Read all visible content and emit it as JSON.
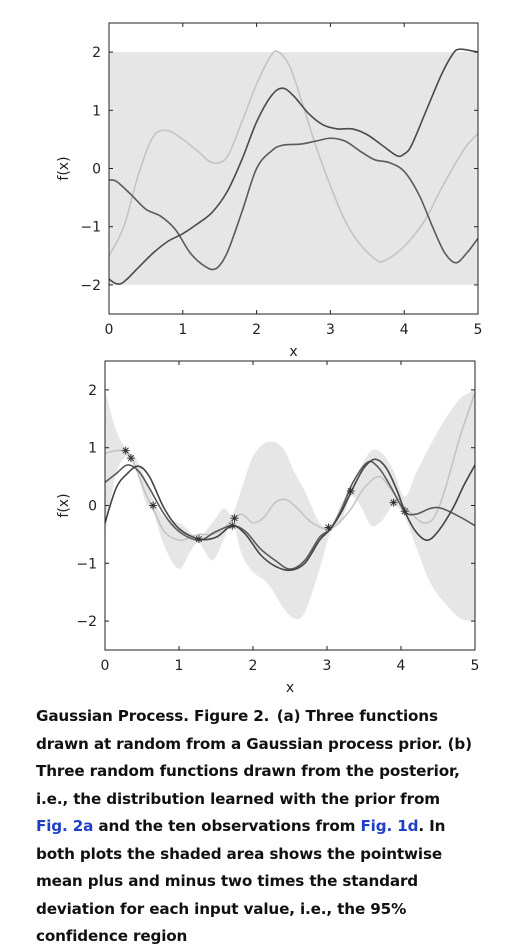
{
  "chart_data": [
    {
      "type": "line",
      "panel": "a",
      "xlabel": "x",
      "ylabel": "f(x)",
      "xlim": [
        0,
        5
      ],
      "ylim": [
        -2.5,
        2.5
      ],
      "xticks": [
        "0",
        "1",
        "2",
        "3",
        "4",
        "5"
      ],
      "yticks": [
        "2",
        "1",
        "0",
        "−1",
        "−2"
      ],
      "band": {
        "x": [
          0,
          5
        ],
        "upper": [
          2,
          2
        ],
        "lower": [
          -2,
          -2
        ],
        "color": "#e6e6e6"
      },
      "series": [
        {
          "color": "#c4c4c4",
          "points": [
            [
              0,
              -1.5
            ],
            [
              0.2,
              -1.0
            ],
            [
              0.4,
              -0.1
            ],
            [
              0.6,
              0.55
            ],
            [
              0.8,
              0.65
            ],
            [
              1.0,
              0.5
            ],
            [
              1.2,
              0.3
            ],
            [
              1.4,
              0.1
            ],
            [
              1.6,
              0.2
            ],
            [
              1.8,
              0.8
            ],
            [
              2.0,
              1.45
            ],
            [
              2.2,
              1.95
            ],
            [
              2.3,
              2.0
            ],
            [
              2.45,
              1.75
            ],
            [
              2.6,
              1.2
            ],
            [
              2.8,
              0.4
            ],
            [
              3.0,
              -0.3
            ],
            [
              3.2,
              -0.9
            ],
            [
              3.4,
              -1.3
            ],
            [
              3.6,
              -1.55
            ],
            [
              3.7,
              -1.6
            ],
            [
              3.9,
              -1.45
            ],
            [
              4.1,
              -1.2
            ],
            [
              4.3,
              -0.85
            ],
            [
              4.5,
              -0.35
            ],
            [
              4.7,
              0.1
            ],
            [
              4.85,
              0.4
            ],
            [
              5.0,
              0.6
            ]
          ]
        },
        {
          "color": "#5a5a5a",
          "points": [
            [
              0,
              -0.2
            ],
            [
              0.1,
              -0.22
            ],
            [
              0.3,
              -0.45
            ],
            [
              0.5,
              -0.7
            ],
            [
              0.7,
              -0.82
            ],
            [
              0.9,
              -1.05
            ],
            [
              1.1,
              -1.45
            ],
            [
              1.3,
              -1.68
            ],
            [
              1.45,
              -1.72
            ],
            [
              1.6,
              -1.45
            ],
            [
              1.8,
              -0.75
            ],
            [
              2.0,
              0.0
            ],
            [
              2.2,
              0.3
            ],
            [
              2.35,
              0.4
            ],
            [
              2.6,
              0.42
            ],
            [
              2.8,
              0.47
            ],
            [
              3.0,
              0.52
            ],
            [
              3.2,
              0.47
            ],
            [
              3.4,
              0.3
            ],
            [
              3.6,
              0.15
            ],
            [
              3.8,
              0.1
            ],
            [
              4.0,
              -0.05
            ],
            [
              4.2,
              -0.45
            ],
            [
              4.4,
              -1.05
            ],
            [
              4.55,
              -1.45
            ],
            [
              4.7,
              -1.62
            ],
            [
              4.85,
              -1.45
            ],
            [
              5.0,
              -1.2
            ]
          ]
        },
        {
          "color": "#4a4a4a",
          "points": [
            [
              0,
              -1.9
            ],
            [
              0.1,
              -1.98
            ],
            [
              0.2,
              -1.95
            ],
            [
              0.4,
              -1.7
            ],
            [
              0.6,
              -1.45
            ],
            [
              0.8,
              -1.25
            ],
            [
              1.0,
              -1.12
            ],
            [
              1.2,
              -0.95
            ],
            [
              1.4,
              -0.75
            ],
            [
              1.6,
              -0.4
            ],
            [
              1.8,
              0.15
            ],
            [
              2.0,
              0.8
            ],
            [
              2.2,
              1.25
            ],
            [
              2.35,
              1.38
            ],
            [
              2.5,
              1.25
            ],
            [
              2.7,
              0.95
            ],
            [
              2.9,
              0.75
            ],
            [
              3.1,
              0.68
            ],
            [
              3.3,
              0.68
            ],
            [
              3.5,
              0.58
            ],
            [
              3.7,
              0.4
            ],
            [
              3.9,
              0.22
            ],
            [
              4.0,
              0.25
            ],
            [
              4.1,
              0.4
            ],
            [
              4.3,
              1.0
            ],
            [
              4.5,
              1.6
            ],
            [
              4.65,
              1.95
            ],
            [
              4.75,
              2.05
            ],
            [
              5.0,
              2.0
            ]
          ]
        }
      ]
    },
    {
      "type": "line",
      "panel": "b",
      "xlabel": "x",
      "ylabel": "f(x)",
      "xlim": [
        0,
        5
      ],
      "ylim": [
        -2.5,
        2.5
      ],
      "xticks": [
        "0",
        "1",
        "2",
        "3",
        "4",
        "5"
      ],
      "yticks": [
        "2",
        "1",
        "0",
        "−1",
        "−2"
      ],
      "band": {
        "color": "#e6e6e6",
        "x": [
          0,
          0.15,
          0.3,
          0.4,
          0.55,
          0.65,
          0.8,
          1.0,
          1.15,
          1.27,
          1.45,
          1.6,
          1.72,
          1.85,
          2.0,
          2.2,
          2.4,
          2.55,
          2.7,
          2.9,
          3.05,
          3.2,
          3.32,
          3.45,
          3.6,
          3.75,
          3.9,
          4.05,
          4.2,
          4.4,
          4.6,
          4.8,
          5.0
        ],
        "upper": [
          2.0,
          1.3,
          0.95,
          0.85,
          0.45,
          0.1,
          -0.2,
          -0.3,
          -0.45,
          -0.55,
          -0.3,
          -0.05,
          -0.15,
          0.3,
          0.85,
          1.1,
          1.0,
          0.6,
          0.25,
          -0.3,
          -0.35,
          0.05,
          0.3,
          0.65,
          0.95,
          0.9,
          0.6,
          0.15,
          0.55,
          1.05,
          1.5,
          1.85,
          2.0
        ],
        "lower": [
          -0.5,
          0.55,
          0.85,
          0.7,
          0.05,
          -0.1,
          -0.7,
          -1.1,
          -0.8,
          -0.65,
          -0.95,
          -0.6,
          -0.3,
          -0.85,
          -1.15,
          -1.35,
          -1.75,
          -1.95,
          -1.85,
          -1.1,
          -0.45,
          -0.25,
          0.15,
          0.0,
          -0.35,
          -0.25,
          0.0,
          -0.2,
          -0.7,
          -1.35,
          -1.7,
          -1.95,
          -2.0
        ]
      },
      "series": [
        {
          "color": "#c4c4c4",
          "points": [
            [
              0,
              0.9
            ],
            [
              0.15,
              0.95
            ],
            [
              0.3,
              0.92
            ],
            [
              0.4,
              0.7
            ],
            [
              0.55,
              0.2
            ],
            [
              0.65,
              -0.05
            ],
            [
              0.8,
              -0.45
            ],
            [
              1.0,
              -0.6
            ],
            [
              1.15,
              -0.55
            ],
            [
              1.27,
              -0.5
            ],
            [
              1.45,
              -0.5
            ],
            [
              1.6,
              -0.4
            ],
            [
              1.72,
              -0.25
            ],
            [
              1.85,
              -0.15
            ],
            [
              2.0,
              -0.3
            ],
            [
              2.15,
              -0.2
            ],
            [
              2.3,
              0.05
            ],
            [
              2.45,
              0.1
            ],
            [
              2.6,
              -0.05
            ],
            [
              2.8,
              -0.3
            ],
            [
              3.05,
              -0.4
            ],
            [
              3.3,
              -0.1
            ],
            [
              3.5,
              0.3
            ],
            [
              3.7,
              0.5
            ],
            [
              3.85,
              0.3
            ],
            [
              4.0,
              0.05
            ],
            [
              4.15,
              -0.15
            ],
            [
              4.3,
              -0.3
            ],
            [
              4.45,
              -0.2
            ],
            [
              4.6,
              0.3
            ],
            [
              4.8,
              1.2
            ],
            [
              5.0,
              1.95
            ]
          ]
        },
        {
          "color": "#5a5a5a",
          "points": [
            [
              0,
              0.4
            ],
            [
              0.15,
              0.55
            ],
            [
              0.3,
              0.7
            ],
            [
              0.45,
              0.6
            ],
            [
              0.6,
              0.3
            ],
            [
              0.8,
              -0.15
            ],
            [
              1.0,
              -0.45
            ],
            [
              1.27,
              -0.6
            ],
            [
              1.5,
              -0.45
            ],
            [
              1.72,
              -0.35
            ],
            [
              1.9,
              -0.45
            ],
            [
              2.1,
              -0.75
            ],
            [
              2.3,
              -0.95
            ],
            [
              2.5,
              -1.1
            ],
            [
              2.7,
              -0.95
            ],
            [
              2.9,
              -0.55
            ],
            [
              3.05,
              -0.4
            ],
            [
              3.2,
              -0.05
            ],
            [
              3.35,
              0.4
            ],
            [
              3.55,
              0.75
            ],
            [
              3.7,
              0.65
            ],
            [
              3.85,
              0.35
            ],
            [
              4.05,
              -0.1
            ],
            [
              4.2,
              -0.15
            ],
            [
              4.4,
              -0.05
            ],
            [
              4.55,
              -0.05
            ],
            [
              4.8,
              -0.2
            ],
            [
              5.0,
              -0.35
            ]
          ]
        },
        {
          "color": "#444444",
          "points": [
            [
              0,
              -0.3
            ],
            [
              0.15,
              0.3
            ],
            [
              0.3,
              0.55
            ],
            [
              0.45,
              0.68
            ],
            [
              0.6,
              0.5
            ],
            [
              0.8,
              -0.05
            ],
            [
              1.0,
              -0.4
            ],
            [
              1.27,
              -0.58
            ],
            [
              1.5,
              -0.55
            ],
            [
              1.72,
              -0.35
            ],
            [
              1.9,
              -0.5
            ],
            [
              2.1,
              -0.85
            ],
            [
              2.3,
              -1.05
            ],
            [
              2.5,
              -1.12
            ],
            [
              2.7,
              -1.0
            ],
            [
              2.9,
              -0.6
            ],
            [
              3.05,
              -0.4
            ],
            [
              3.2,
              -0.1
            ],
            [
              3.35,
              0.3
            ],
            [
              3.5,
              0.65
            ],
            [
              3.65,
              0.8
            ],
            [
              3.8,
              0.65
            ],
            [
              3.95,
              0.25
            ],
            [
              4.05,
              -0.1
            ],
            [
              4.2,
              -0.45
            ],
            [
              4.35,
              -0.6
            ],
            [
              4.5,
              -0.45
            ],
            [
              4.7,
              -0.05
            ],
            [
              4.85,
              0.35
            ],
            [
              5.0,
              0.7
            ]
          ]
        }
      ],
      "observations": [
        [
          0.28,
          0.95
        ],
        [
          0.35,
          0.82
        ],
        [
          0.65,
          0.0
        ],
        [
          1.27,
          -0.58
        ],
        [
          1.72,
          -0.35
        ],
        [
          1.75,
          -0.22
        ],
        [
          3.02,
          -0.38
        ],
        [
          3.32,
          0.25
        ],
        [
          3.9,
          0.05
        ],
        [
          4.05,
          -0.1
        ]
      ]
    }
  ],
  "caption": {
    "text_1": "Gaussian Process. Figure 2. (a) Three functions drawn at random from a Gaussian process prior. (b) Three random functions drawn from the posterior, i.e., the distribution learned with the prior from ",
    "ref_1": "Fig. 2a",
    "text_2": " and the ten observations from ",
    "ref_2": "Fig. 1d",
    "text_3": ". In both plots the shaded area shows the pointwise mean plus and minus two times the standard deviation for each input value, i.e., the 95% confidence region"
  }
}
